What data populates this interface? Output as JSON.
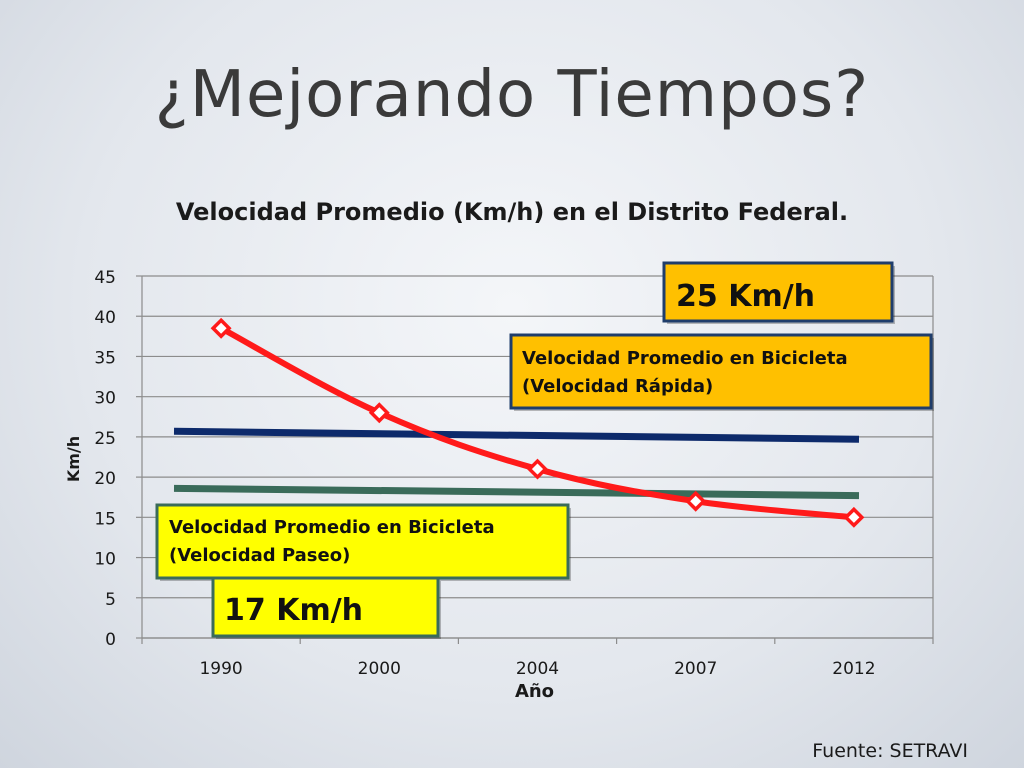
{
  "slide": {
    "title": "¿Mejorando Tiempos?",
    "source": "Fuente: SETRAVI"
  },
  "chart_data": {
    "type": "line",
    "title": "Velocidad Promedio (Km/h) en el Distrito Federal.",
    "xlabel": "Año",
    "ylabel": "Km/h",
    "categories": [
      "1990",
      "2000",
      "2004",
      "2007",
      "2012"
    ],
    "ylim": [
      0,
      45
    ],
    "yticks": [
      0,
      5,
      10,
      15,
      20,
      25,
      30,
      35,
      40,
      45
    ],
    "grid": true,
    "series": [
      {
        "values": [
          38.5,
          28,
          21,
          17,
          15
        ],
        "color": "#ff1a1a",
        "marker": "diamond"
      }
    ],
    "reference_lines": [
      {
        "label": "Velocidad Promedio  en Bicicleta (Velocidad Rápida)",
        "value_label": "25  Km/h",
        "start": 25.7,
        "end": 24.7,
        "color": "#0d2a6b",
        "box_color": "#ffc000"
      },
      {
        "label": "Velocidad Promedio en Bicicleta (Velocidad Paseo)",
        "value_label": "17 Km/h",
        "start": 18.6,
        "end": 17.7,
        "color": "#3a6b5a",
        "box_color": "#ffff00"
      }
    ],
    "annotations": [
      {
        "lines": [
          "Velocidad Promedio  en Bicicleta",
          "(Velocidad Rápida)"
        ]
      },
      {
        "lines": [
          "Velocidad Promedio en Bicicleta",
          "(Velocidad Paseo)"
        ]
      }
    ]
  }
}
